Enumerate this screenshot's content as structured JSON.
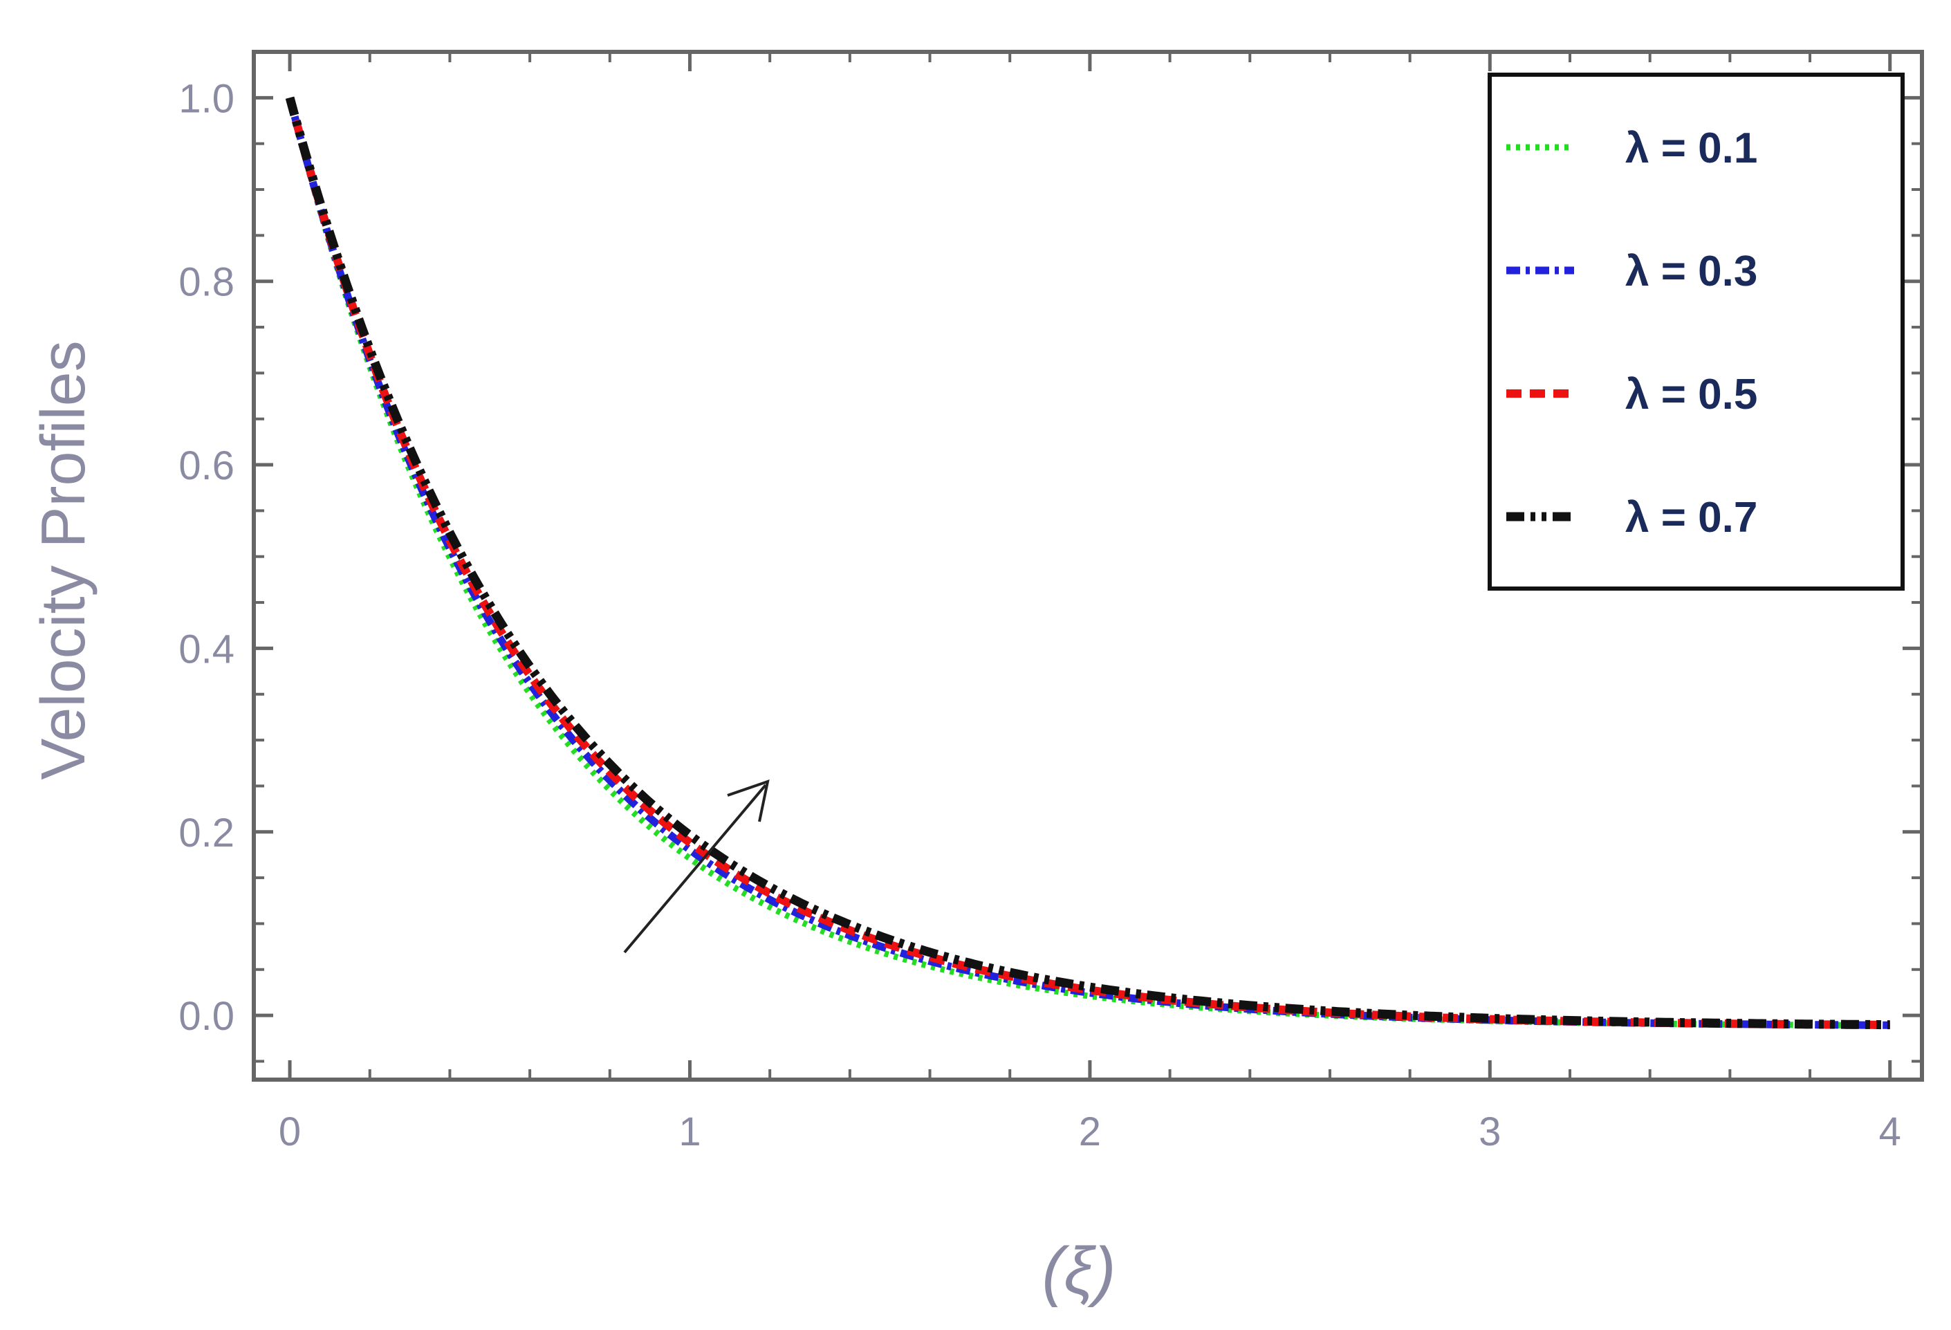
{
  "chart_data": {
    "type": "line",
    "title": "",
    "xlabel": "(ξ)",
    "ylabel": "Velocity Profiles",
    "xlim": [
      -0.09,
      4.08
    ],
    "ylim": [
      -0.07,
      1.05
    ],
    "xticks": [
      "0",
      "1",
      "2",
      "3",
      "4"
    ],
    "yticks": [
      "0.0",
      "0.2",
      "0.4",
      "0.6",
      "0.8",
      "1.0"
    ],
    "grid": false,
    "legend_position": "top-right",
    "annotation": "arrow pointing toward increasing λ",
    "series": [
      {
        "name": "λ = 0.1",
        "color": "#22dd22",
        "style": "dotted",
        "decay": 1.71,
        "floor": -0.012
      },
      {
        "name": "λ = 0.3",
        "color": "#2222dd",
        "style": "dash-dot",
        "decay": 1.66,
        "floor": -0.012
      },
      {
        "name": "λ = 0.5",
        "color": "#ee1111",
        "style": "dashed",
        "decay": 1.62,
        "floor": -0.012
      },
      {
        "name": "λ = 0.7",
        "color": "#111111",
        "style": "dash-dot-dot",
        "decay": 1.58,
        "floor": -0.012
      }
    ]
  }
}
